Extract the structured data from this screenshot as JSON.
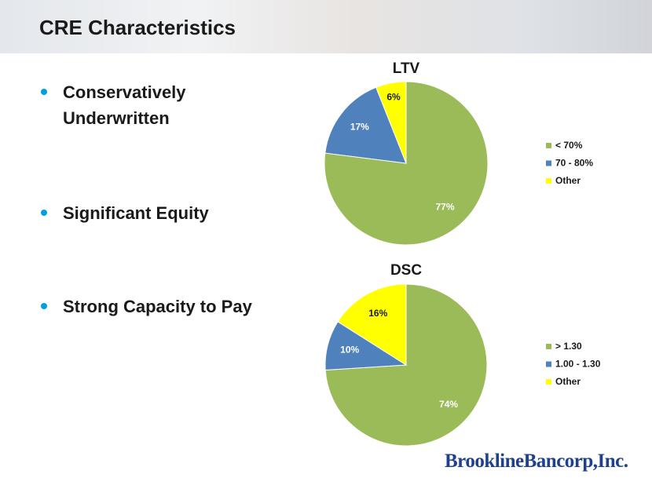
{
  "header": {
    "title": "CRE Characteristics"
  },
  "bullets": [
    "Conservatively Underwritten",
    "Significant Equity",
    "Strong Capacity to Pay"
  ],
  "logo": "BrooklineBancorp,Inc.",
  "chart_data": [
    {
      "type": "pie",
      "title": "LTV",
      "categories": [
        "< 70%",
        "70 - 80%",
        "Other"
      ],
      "values": [
        77,
        17,
        6
      ],
      "value_labels": [
        "77%",
        "17%",
        "6%"
      ],
      "colors": [
        "#9bbb59",
        "#4f81bd",
        "#ffff00"
      ],
      "legend": "right"
    },
    {
      "type": "pie",
      "title": "DSC",
      "categories": [
        "> 1.30",
        "1.00 - 1.30",
        "Other"
      ],
      "values": [
        74,
        10,
        16
      ],
      "value_labels": [
        "74%",
        "10%",
        "16%"
      ],
      "colors": [
        "#9bbb59",
        "#4f81bd",
        "#ffff00"
      ],
      "legend": "right"
    }
  ]
}
